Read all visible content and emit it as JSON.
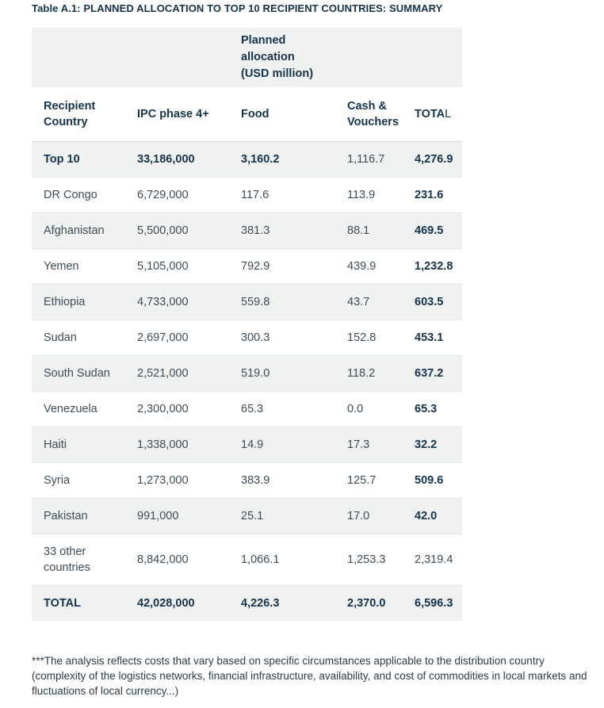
{
  "title": "Table A.1: PLANNED ALLOCATION TO TOP 10 RECIPIENT COUNTRIES: SUMMARY",
  "table": {
    "group_header": "Planned allocation (USD million)",
    "columns": {
      "country": "Recipient Country",
      "ipc": "IPC phase 4+",
      "food": "Food",
      "cash": "Cash & Vouchers",
      "total_bold": "TOTA",
      "total_tail": "L"
    },
    "rows": [
      {
        "country": "Top 10",
        "ipc": "33,186,000",
        "food": "3,160.2",
        "cash": "1,116.7",
        "total": "4,276.9"
      },
      {
        "country": "DR Congo",
        "ipc": "6,729,000",
        "food": "117.6",
        "cash": "113.9",
        "total": "231.6"
      },
      {
        "country": "Afghanistan",
        "ipc": "5,500,000",
        "food": "381.3",
        "cash": "88.1",
        "total": "469.5"
      },
      {
        "country": "Yemen",
        "ipc": "5,105,000",
        "food": "792.9",
        "cash": "439.9",
        "total": "1,232.8"
      },
      {
        "country": "Ethiopia",
        "ipc": "4,733,000",
        "food": "559.8",
        "cash": "43.7",
        "total": "603.5"
      },
      {
        "country": "Sudan",
        "ipc": "2,697,000",
        "food": "300.3",
        "cash": "152.8",
        "total": "453.1"
      },
      {
        "country": "South Sudan",
        "ipc": "2,521,000",
        "food": "519.0",
        "cash": "118.2",
        "total": "637.2"
      },
      {
        "country": "Venezuela",
        "ipc": "2,300,000",
        "food": "65.3",
        "cash": "0.0",
        "total": "65.3"
      },
      {
        "country": "Haiti",
        "ipc": "1,338,000",
        "food": "14.9",
        "cash": "17.3",
        "total": "32.2"
      },
      {
        "country": "Syria",
        "ipc": "1,273,000",
        "food": "383.9",
        "cash": "125.7",
        "total": "509.6"
      },
      {
        "country": "Pakistan",
        "ipc": "991,000",
        "food": "25.1",
        "cash": "17.0",
        "total": "42.0"
      },
      {
        "country": "33 other countries",
        "ipc": "8,842,000",
        "food": "1,066.1",
        "cash": "1,253.3",
        "total": "2,319.4"
      },
      {
        "country": "TOTAL",
        "ipc": "42,028,000",
        "food": "4,226.3",
        "cash": "2,370.0",
        "total": "6,596.3"
      }
    ]
  },
  "footnote": "***The analysis reflects costs that vary based on specific circumstances applicable to the distribution country (complexity of the logistics networks, financial infrastructure, availability, and cost of commodities in local markets and fluctuations of local currency...)",
  "colors": {
    "accent_text": "#16334d",
    "body_text": "#3e4d58",
    "row_alt_bg": "#f0f1f1"
  }
}
